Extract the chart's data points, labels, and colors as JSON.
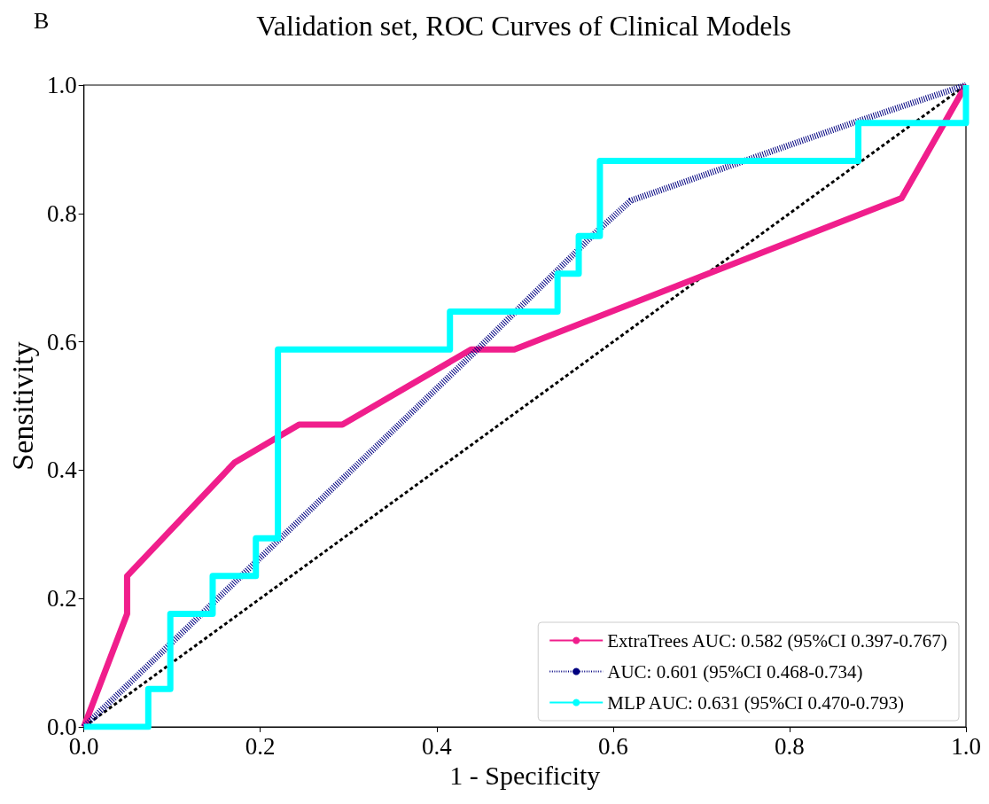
{
  "chart_data": {
    "type": "line",
    "title": "Validation set, ROC Curves of Clinical Models",
    "xlabel": "1 - Specificity",
    "ylabel": "Sensitivity",
    "annotations": [
      "B"
    ],
    "xlim": [
      0,
      1
    ],
    "ylim": [
      0,
      1
    ],
    "xticks": [
      {
        "value": 0,
        "label": "0.0"
      },
      0.2,
      0.4,
      0.6,
      0.8,
      {
        "value": 1,
        "label": "1.0"
      }
    ],
    "yticks": [
      {
        "value": 0,
        "label": "0.0"
      },
      0.2,
      0.4,
      0.6,
      0.8,
      {
        "value": 1,
        "label": "1.0"
      }
    ],
    "grid": false,
    "legend": "bottom right",
    "marker": "none",
    "series": [
      {
        "name": "ExtraTrees AUC: 0.582 (95%CI 0.397-0.767)",
        "color": "#f01e8c",
        "line_style": "solid",
        "x": [
          0,
          0.049,
          0.049,
          0.171,
          0.244,
          0.293,
          0.439,
          0.488,
          0.927,
          1
        ],
        "values": [
          0,
          0.176,
          0.235,
          0.412,
          0.471,
          0.471,
          0.588,
          0.588,
          0.824,
          1
        ]
      },
      {
        "name": "AUC: 0.601 (95%CI 0.468-0.734)",
        "color": "#000080",
        "line_style": "dotted",
        "x": [
          0,
          0.22,
          0.44,
          0.58,
          0.62,
          0.88,
          1
        ],
        "values": [
          0,
          0.29,
          0.58,
          0.77,
          0.82,
          0.945,
          1
        ]
      },
      {
        "name": "MLP AUC: 0.631 (95%CI 0.470-0.793)",
        "color": "#00ffff",
        "line_style": "solid",
        "x": [
          0,
          0.073,
          0.073,
          0.098,
          0.098,
          0.146,
          0.146,
          0.195,
          0.195,
          0.22,
          0.22,
          0.415,
          0.415,
          0.537,
          0.537,
          0.561,
          0.561,
          0.585,
          0.585,
          0.878,
          0.878,
          1,
          1
        ],
        "values": [
          0,
          0,
          0.059,
          0.059,
          0.176,
          0.176,
          0.235,
          0.235,
          0.294,
          0.294,
          0.588,
          0.588,
          0.647,
          0.647,
          0.706,
          0.706,
          0.765,
          0.765,
          0.882,
          0.882,
          0.941,
          0.941,
          1
        ]
      },
      {
        "color": "#000000",
        "line_style": "dashed",
        "x": [
          0,
          1
        ],
        "values": [
          0,
          1
        ]
      }
    ]
  }
}
